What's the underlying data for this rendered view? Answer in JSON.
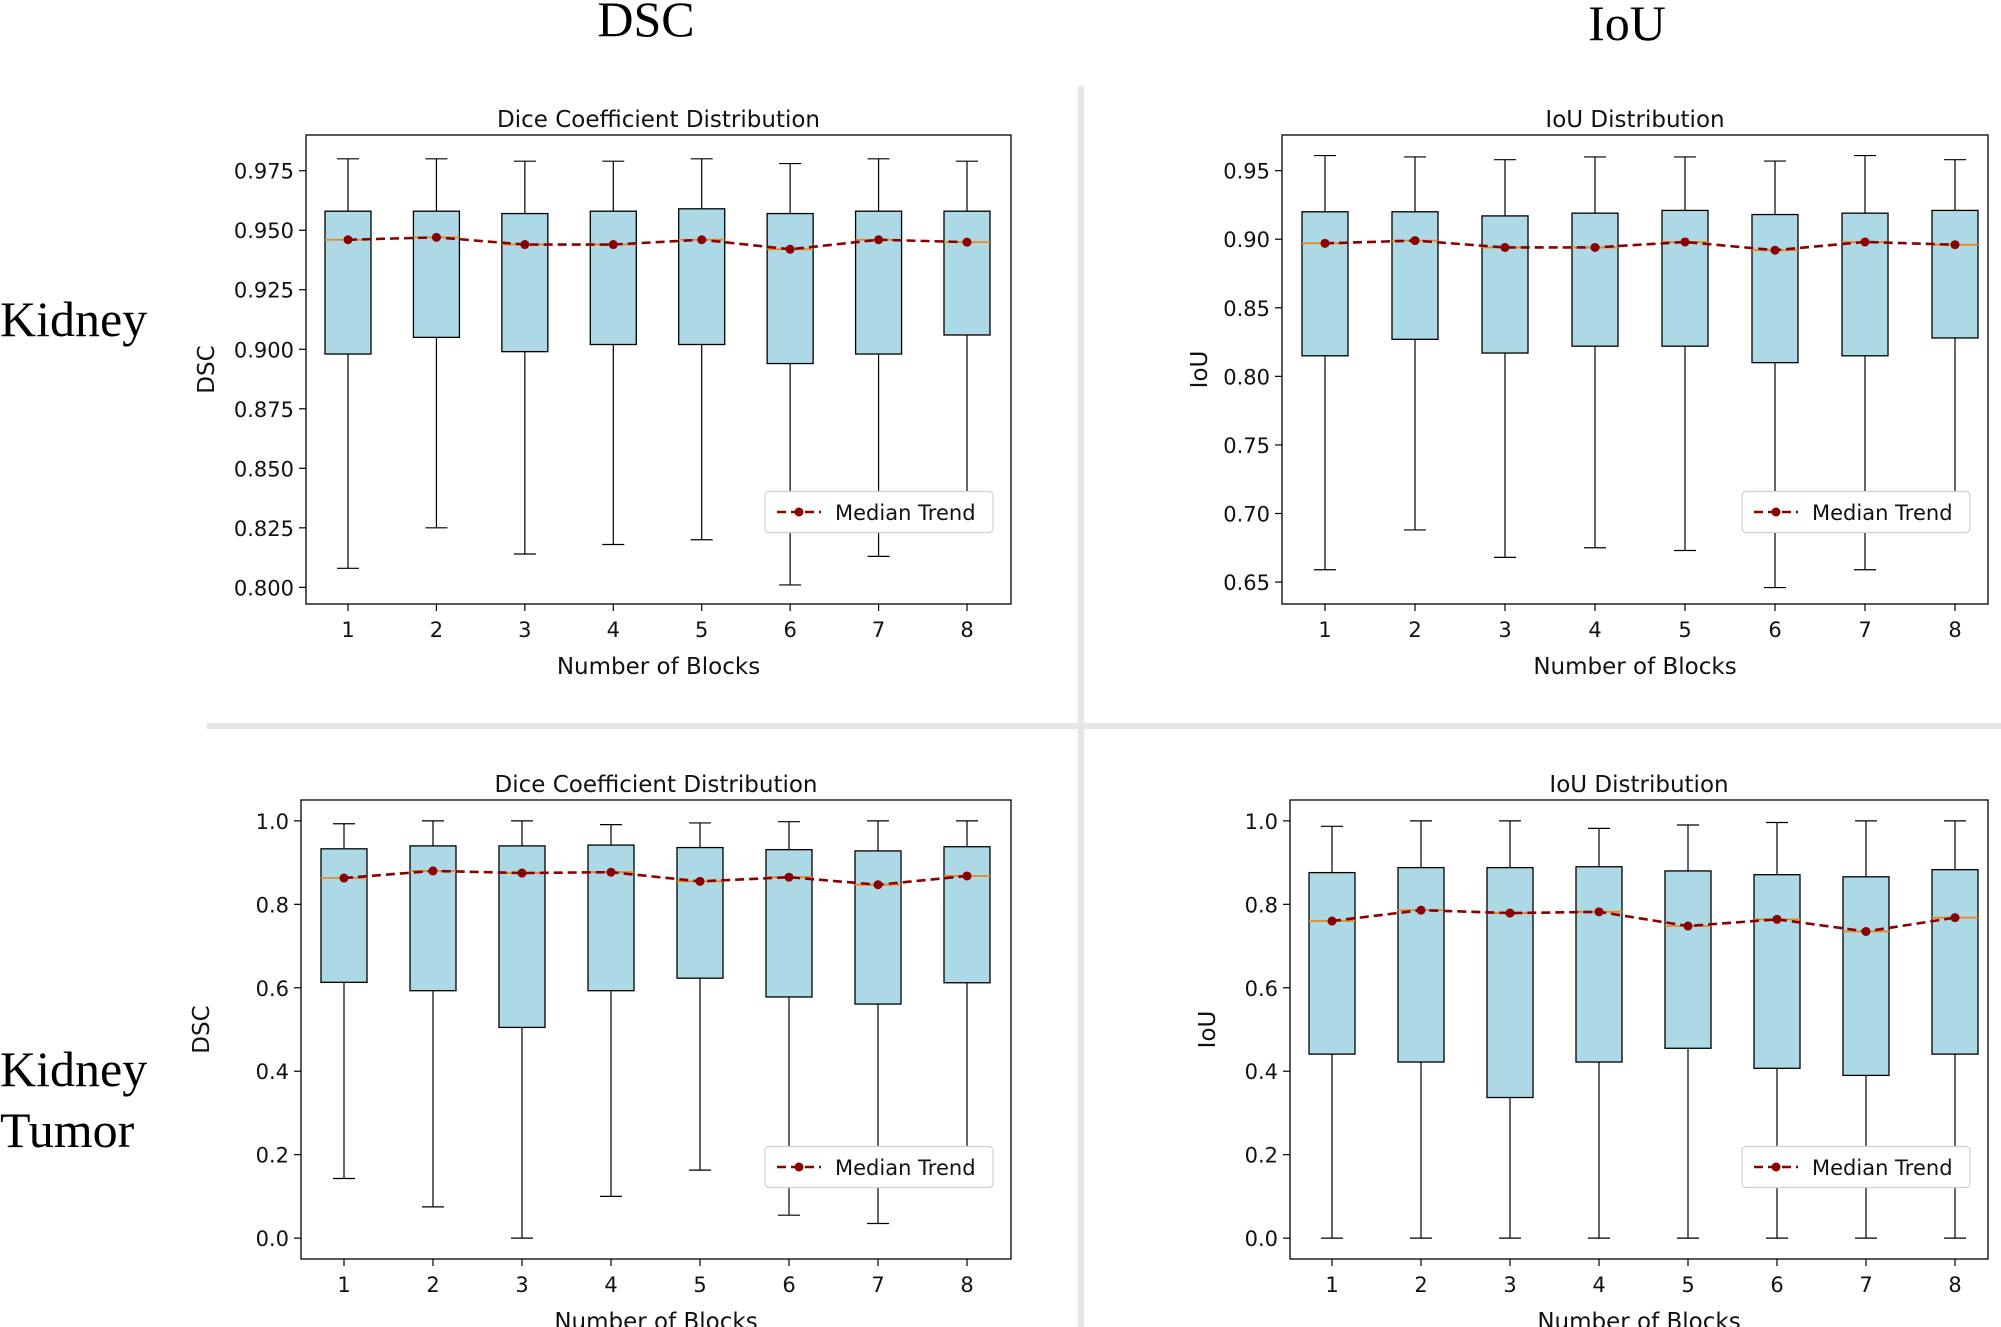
{
  "figure": {
    "column_titles": [
      "DSC",
      "IoU"
    ],
    "row_titles": [
      [
        "Kidney"
      ],
      [
        "Kidney",
        "Tumor"
      ]
    ]
  },
  "chart_data": [
    {
      "id": "kidney-dsc",
      "type": "box",
      "title": "Dice Coefficient Distribution",
      "xlabel": "Number of Blocks",
      "ylabel": "DSC",
      "categories": [
        "1",
        "2",
        "3",
        "4",
        "5",
        "6",
        "7",
        "8"
      ],
      "ylim": [
        0.793,
        0.99
      ],
      "yticks": [
        0.8,
        0.825,
        0.85,
        0.875,
        0.9,
        0.925,
        0.95,
        0.975
      ],
      "ytick_labels": [
        "0.800",
        "0.825",
        "0.850",
        "0.875",
        "0.900",
        "0.925",
        "0.950",
        "0.975"
      ],
      "whisker_low": [
        0.808,
        0.825,
        0.814,
        0.818,
        0.82,
        0.801,
        0.813,
        0.829
      ],
      "q1": [
        0.898,
        0.905,
        0.899,
        0.902,
        0.902,
        0.894,
        0.898,
        0.906
      ],
      "median": [
        0.946,
        0.947,
        0.944,
        0.944,
        0.946,
        0.942,
        0.946,
        0.945
      ],
      "q3": [
        0.958,
        0.958,
        0.957,
        0.958,
        0.959,
        0.957,
        0.958,
        0.958
      ],
      "whisker_high": [
        0.98,
        0.98,
        0.979,
        0.979,
        0.98,
        0.978,
        0.98,
        0.979
      ],
      "legend": {
        "label": "Median Trend",
        "placement": "lower-right"
      }
    },
    {
      "id": "kidney-iou",
      "type": "box",
      "title": "IoU Distribution",
      "xlabel": "Number of Blocks",
      "ylabel": "IoU",
      "categories": [
        "1",
        "2",
        "3",
        "4",
        "5",
        "6",
        "7",
        "8"
      ],
      "ylim": [
        0.634,
        0.976
      ],
      "yticks": [
        0.65,
        0.7,
        0.75,
        0.8,
        0.85,
        0.9,
        0.95
      ],
      "ytick_labels": [
        "0.65",
        "0.70",
        "0.75",
        "0.80",
        "0.85",
        "0.90",
        "0.95"
      ],
      "whisker_low": [
        0.659,
        0.688,
        0.668,
        0.675,
        0.673,
        0.646,
        0.659,
        0.69
      ],
      "q1": [
        0.815,
        0.827,
        0.817,
        0.822,
        0.822,
        0.81,
        0.815,
        0.828
      ],
      "median": [
        0.897,
        0.899,
        0.894,
        0.894,
        0.898,
        0.892,
        0.898,
        0.896
      ],
      "q3": [
        0.92,
        0.92,
        0.917,
        0.919,
        0.921,
        0.918,
        0.919,
        0.921
      ],
      "whisker_high": [
        0.961,
        0.96,
        0.958,
        0.96,
        0.96,
        0.957,
        0.961,
        0.958
      ],
      "legend": {
        "label": "Median Trend",
        "placement": "lower-right"
      }
    },
    {
      "id": "tumor-dsc",
      "type": "box",
      "title": "Dice Coefficient Distribution",
      "xlabel": "Number of Blocks",
      "ylabel": "DSC",
      "categories": [
        "1",
        "2",
        "3",
        "4",
        "5",
        "6",
        "7",
        "8"
      ],
      "ylim": [
        -0.05,
        1.05
      ],
      "yticks": [
        0.0,
        0.2,
        0.4,
        0.6,
        0.8,
        1.0
      ],
      "ytick_labels": [
        "0.0",
        "0.2",
        "0.4",
        "0.6",
        "0.8",
        "1.0"
      ],
      "whisker_low": [
        0.143,
        0.075,
        0.0,
        0.1,
        0.163,
        0.055,
        0.035,
        0.124
      ],
      "q1": [
        0.613,
        0.593,
        0.505,
        0.593,
        0.623,
        0.578,
        0.561,
        0.612
      ],
      "median": [
        0.863,
        0.88,
        0.875,
        0.877,
        0.855,
        0.865,
        0.847,
        0.868
      ],
      "q3": [
        0.933,
        0.94,
        0.94,
        0.942,
        0.936,
        0.931,
        0.928,
        0.938
      ],
      "whisker_high": [
        0.993,
        1.0,
        1.0,
        0.991,
        0.995,
        0.998,
        1.0,
        1.0
      ],
      "legend": {
        "label": "Median Trend",
        "placement": "lower-right"
      }
    },
    {
      "id": "tumor-iou",
      "type": "box",
      "title": "IoU Distribution",
      "xlabel": "Number of Blocks",
      "ylabel": "IoU",
      "categories": [
        "1",
        "2",
        "3",
        "4",
        "5",
        "6",
        "7",
        "8"
      ],
      "ylim": [
        -0.05,
        1.05
      ],
      "yticks": [
        0.0,
        0.2,
        0.4,
        0.6,
        0.8,
        1.0
      ],
      "ytick_labels": [
        "0.0",
        "0.2",
        "0.4",
        "0.6",
        "0.8",
        "1.0"
      ],
      "whisker_low": [
        0.0,
        0.0,
        0.0,
        0.0,
        0.0,
        0.0,
        0.0,
        0.0
      ],
      "q1": [
        0.441,
        0.422,
        0.337,
        0.422,
        0.455,
        0.407,
        0.39,
        0.441
      ],
      "median": [
        0.76,
        0.786,
        0.779,
        0.782,
        0.748,
        0.764,
        0.735,
        0.768
      ],
      "q3": [
        0.876,
        0.888,
        0.888,
        0.89,
        0.88,
        0.871,
        0.866,
        0.883
      ],
      "whisker_high": [
        0.987,
        1.0,
        1.0,
        0.982,
        0.99,
        0.996,
        1.0,
        1.0
      ],
      "legend": {
        "label": "Median Trend",
        "placement": "lower-right"
      }
    }
  ],
  "colors": {
    "box_fill": "#add8e6",
    "box_edge": "#000000",
    "median_line": "#e8891c",
    "trend": "#8b0000",
    "divider": "#e6e6e6"
  }
}
